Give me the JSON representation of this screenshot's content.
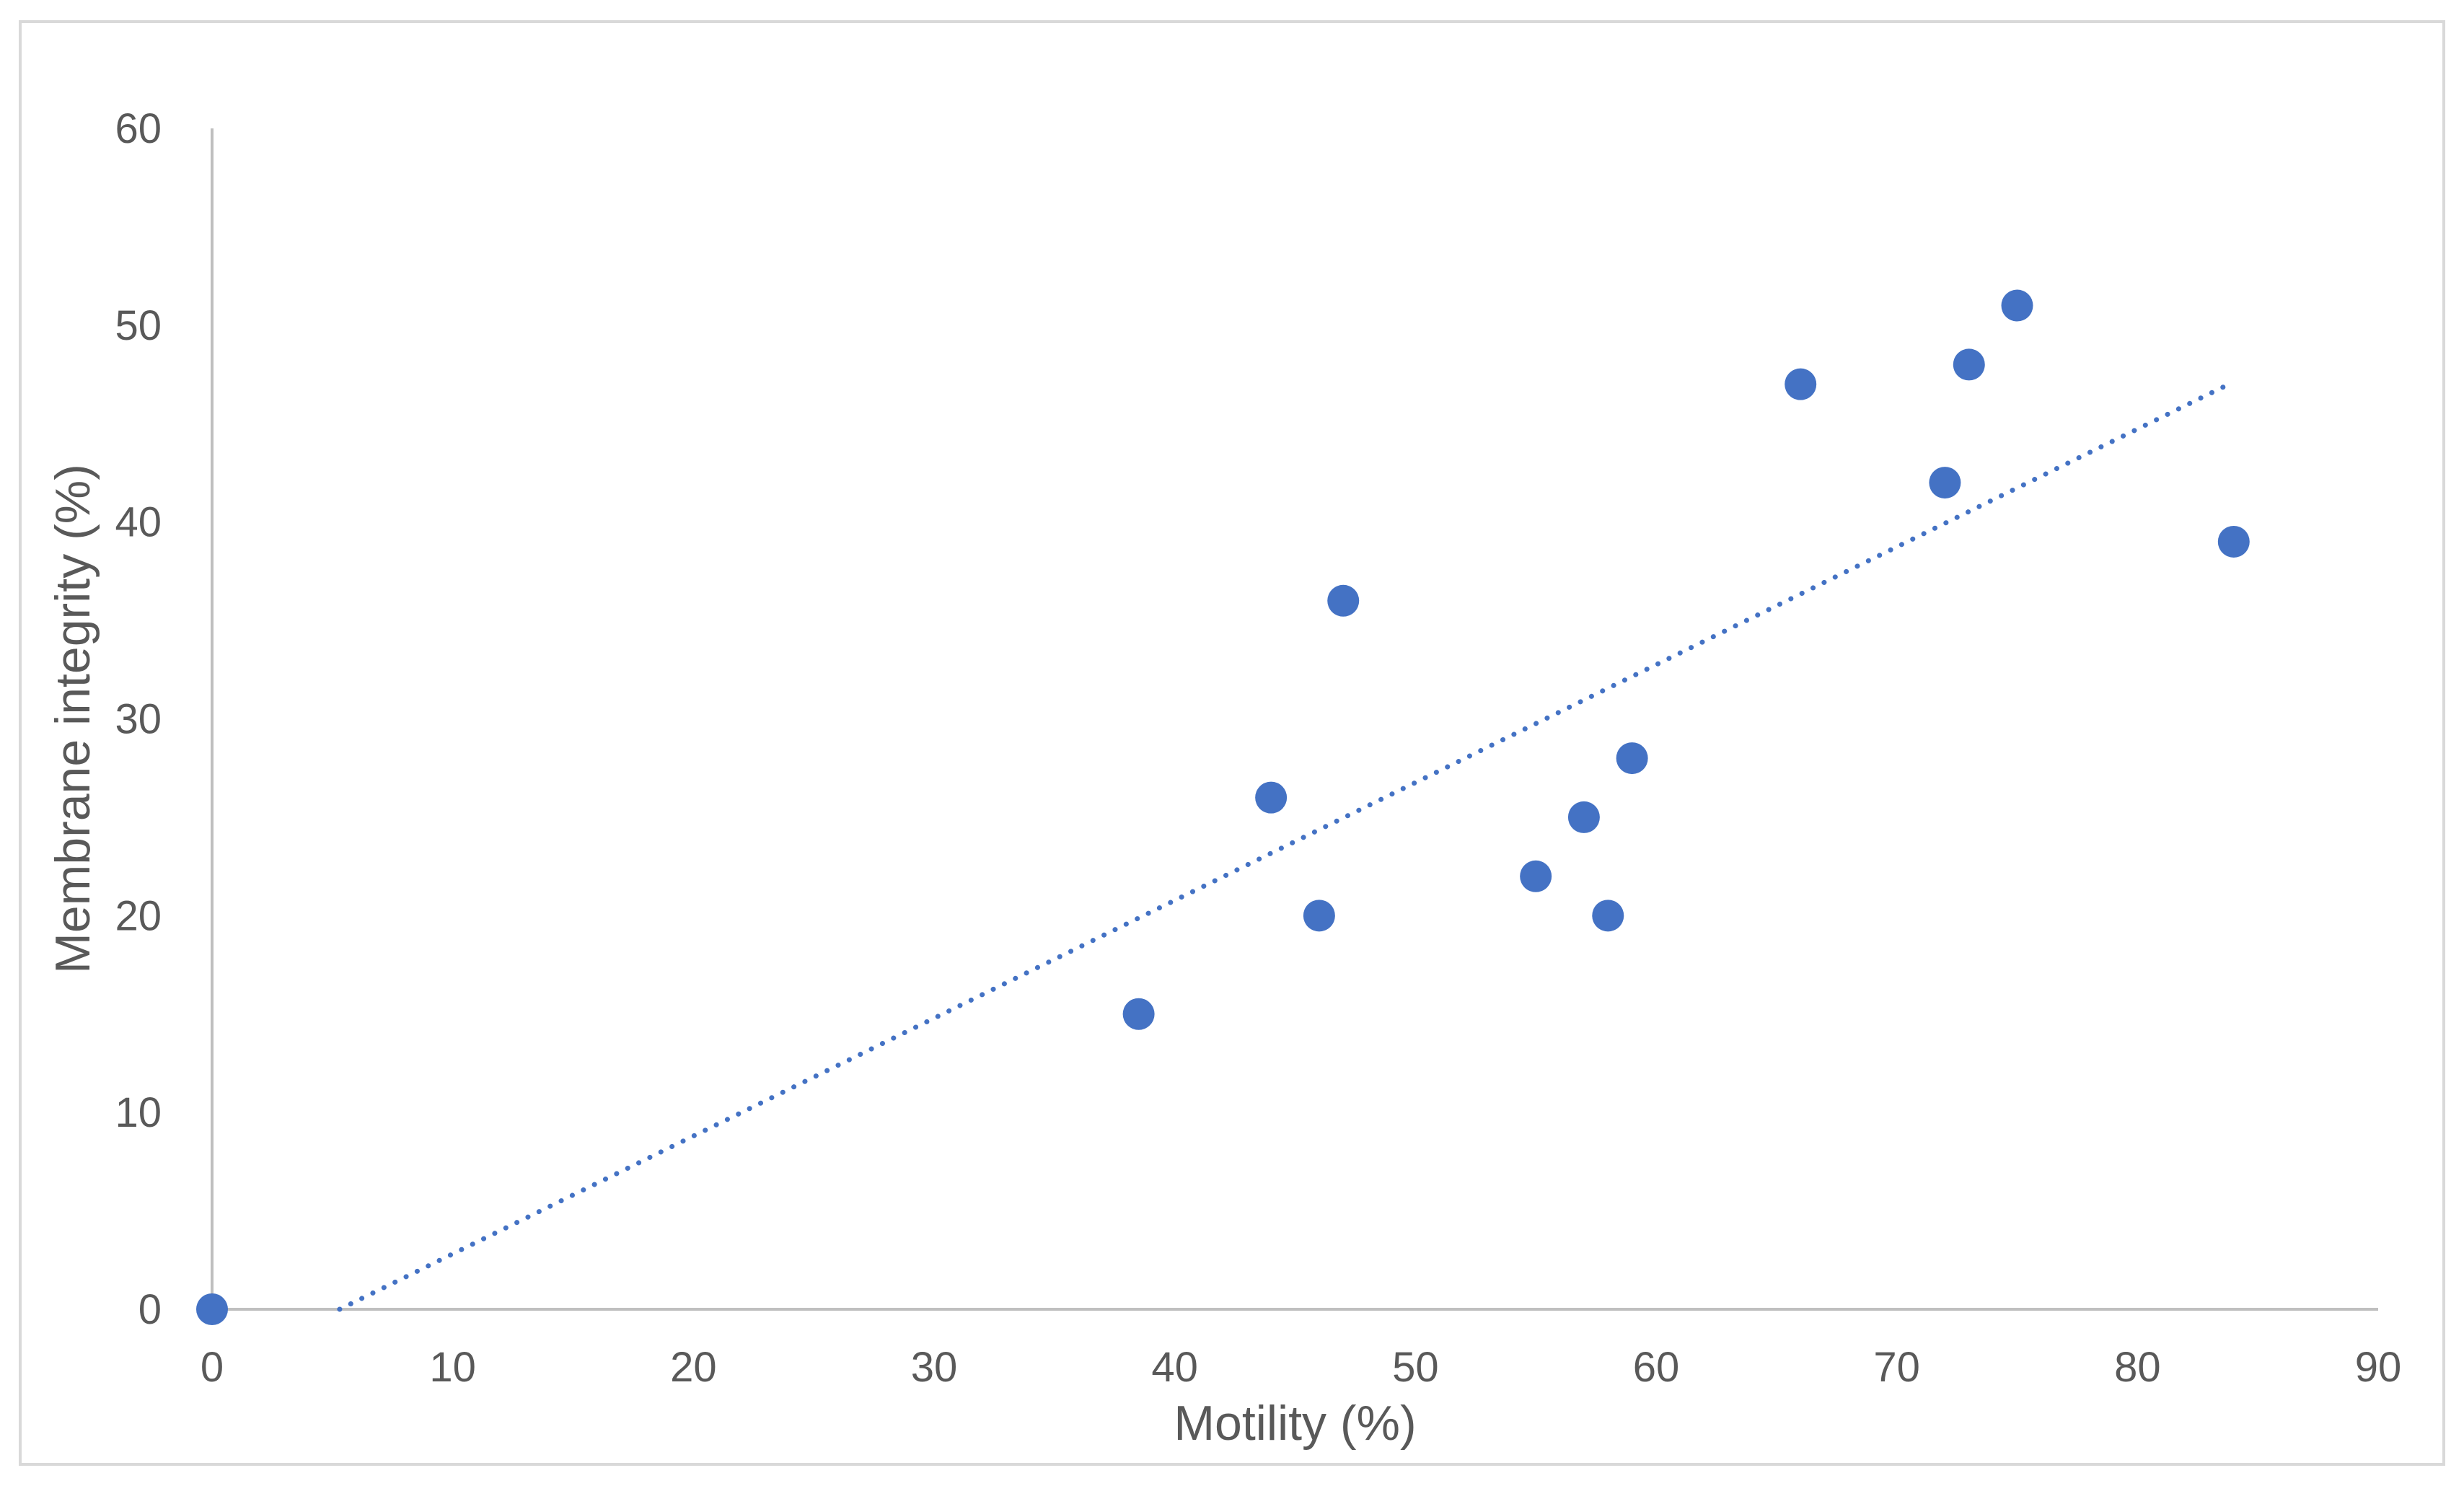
{
  "chart_data": {
    "type": "scatter",
    "title": "",
    "xlabel": "Motility (%)",
    "ylabel": "Membrane integrity (%)",
    "xlim": [
      0,
      90
    ],
    "ylim": [
      0,
      60
    ],
    "x_ticks": [
      "0",
      "10",
      "20",
      "30",
      "40",
      "50",
      "60",
      "70",
      "80",
      "90"
    ],
    "y_ticks": [
      "0",
      "10",
      "20",
      "30",
      "40",
      "50",
      "60"
    ],
    "grid": false,
    "legend": "none",
    "colors": {
      "marker": "#4472c4",
      "trendline": "#4472c4",
      "axis": "#bfbfbf",
      "text": "#595959"
    },
    "series": [
      {
        "points": [
          {
            "x": 0,
            "y": 0
          },
          {
            "x": 38.5,
            "y": 15
          },
          {
            "x": 44,
            "y": 26
          },
          {
            "x": 46,
            "y": 20
          },
          {
            "x": 47,
            "y": 36
          },
          {
            "x": 55,
            "y": 22
          },
          {
            "x": 57,
            "y": 25
          },
          {
            "x": 58,
            "y": 20
          },
          {
            "x": 59,
            "y": 28
          },
          {
            "x": 66,
            "y": 47
          },
          {
            "x": 72,
            "y": 42
          },
          {
            "x": 73,
            "y": 48
          },
          {
            "x": 75,
            "y": 51
          },
          {
            "x": 84,
            "y": 39
          }
        ]
      }
    ],
    "trendline": {
      "style": "dotted",
      "type": "linear",
      "x_start": 5.3,
      "y_start": 0,
      "x_end": 83.8,
      "y_end": 47
    }
  }
}
